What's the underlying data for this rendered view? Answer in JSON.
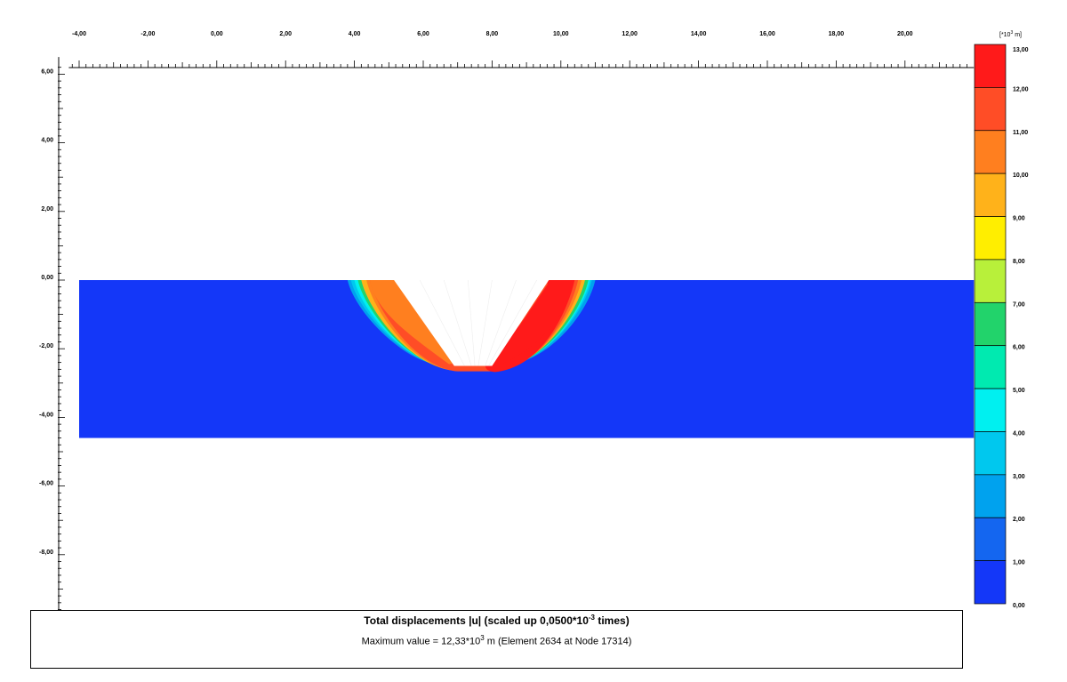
{
  "chart_data": {
    "type": "heatmap",
    "title": "Total displacements |u| (scaled up 0,0500*10",
    "title_exp": "-3",
    "title_suffix": " times)",
    "max_prefix": "Maximum value = 12,33*10",
    "max_exp": "3",
    "max_suffix": " m (Element 2634 at Node 17314)",
    "unit_prefix": "[*10",
    "unit_exp": "3",
    "unit_suffix": " m]",
    "x_ticks": [
      "-4,00",
      "-2,00",
      "0,00",
      "2,00",
      "4,00",
      "6,00",
      "8,00",
      "10,00",
      "12,00",
      "14,00",
      "16,00",
      "18,00",
      "20,00"
    ],
    "x_tick_values": [
      -4,
      -2,
      0,
      2,
      4,
      6,
      8,
      10,
      12,
      14,
      16,
      18,
      20
    ],
    "y_ticks": [
      "6,00",
      "4,00",
      "2,00",
      "0,00",
      "-2,00",
      "-4,00",
      "-6,00",
      "-8,00"
    ],
    "y_tick_values": [
      6,
      4,
      2,
      0,
      -2,
      -4,
      -6,
      -8
    ],
    "xlim": [
      -4.3,
      22.0
    ],
    "ylim": [
      -9.7,
      6.5
    ],
    "soil_block": {
      "x": [
        -4.0,
        22.0
      ],
      "y": [
        -4.6,
        0.0
      ],
      "base_value": 0.0
    },
    "excavation": {
      "top_x": [
        4.4,
        10.4
      ],
      "bottom_x": [
        6.9,
        8.0
      ],
      "y_bottom": -2.5
    },
    "colorbar": {
      "ticks": [
        "13,00",
        "12,00",
        "11,00",
        "10,00",
        "9,00",
        "8,00",
        "7,00",
        "6,00",
        "5,00",
        "4,00",
        "3,00",
        "2,00",
        "1,00",
        "0,00"
      ],
      "values": [
        13,
        12,
        11,
        10,
        9,
        8,
        7,
        6,
        5,
        4,
        3,
        2,
        1,
        0
      ],
      "colors": [
        "#ff1a1a",
        "#ff4d26",
        "#ff7f1f",
        "#ffb21a",
        "#ffee00",
        "#b8f03a",
        "#22d36b",
        "#00eab0",
        "#00f0f0",
        "#00c8ee",
        "#00a2ee",
        "#1466f0",
        "#1437f8"
      ]
    },
    "max_value": 12.33
  }
}
